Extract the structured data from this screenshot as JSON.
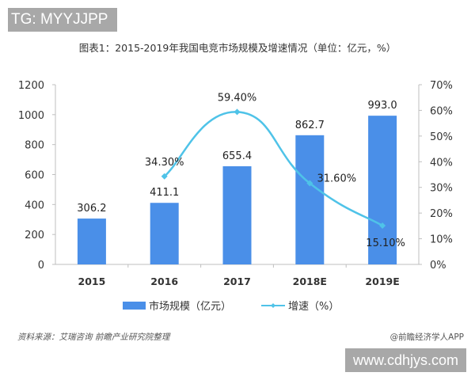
{
  "watermarks": {
    "top_left": "TG: MYYJJPP",
    "bottom_right": "www.cdhjys.com"
  },
  "title": "图表1：2015-2019年我国电竞市场规模及增速情况（单位：亿元，%）",
  "footer": {
    "source": "资料来源：艾瑞咨询 前瞻产业研究院整理",
    "credit": "@前瞻经济学人APP"
  },
  "colors": {
    "bar": "#4a8fe8",
    "line": "#4fc3e8",
    "axis": "#bfbfbf"
  },
  "chart_data": {
    "type": "bar",
    "title": "图表1：2015-2019年我国电竞市场规模及增速情况（单位：亿元，%）",
    "categories": [
      "2015",
      "2016",
      "2017",
      "2018E",
      "2019E"
    ],
    "series": [
      {
        "name": "市场规模（亿元）",
        "type": "bar",
        "axis": "left",
        "values": [
          306.2,
          411.1,
          655.4,
          862.7,
          993.0
        ],
        "labels": [
          "306.2",
          "411.1",
          "655.4",
          "862.7",
          "993.0"
        ]
      },
      {
        "name": "增速（%）",
        "type": "line",
        "axis": "right",
        "values": [
          null,
          34.3,
          59.4,
          31.6,
          15.1
        ],
        "labels": [
          "",
          "34.30%",
          "59.40%",
          "31.60%",
          "15.10%"
        ]
      }
    ],
    "left_axis": {
      "ylim": [
        0,
        1200
      ],
      "ticks": [
        "0",
        "200",
        "400",
        "600",
        "800",
        "1000",
        "1200"
      ]
    },
    "right_axis": {
      "ylim": [
        0,
        70
      ],
      "ticks": [
        "0%",
        "10%",
        "20%",
        "30%",
        "40%",
        "50%",
        "60%",
        "70%"
      ]
    },
    "legend": {
      "position": "bottom",
      "items": [
        "市场规模（亿元）",
        "增速（%）"
      ]
    },
    "grid": false
  }
}
